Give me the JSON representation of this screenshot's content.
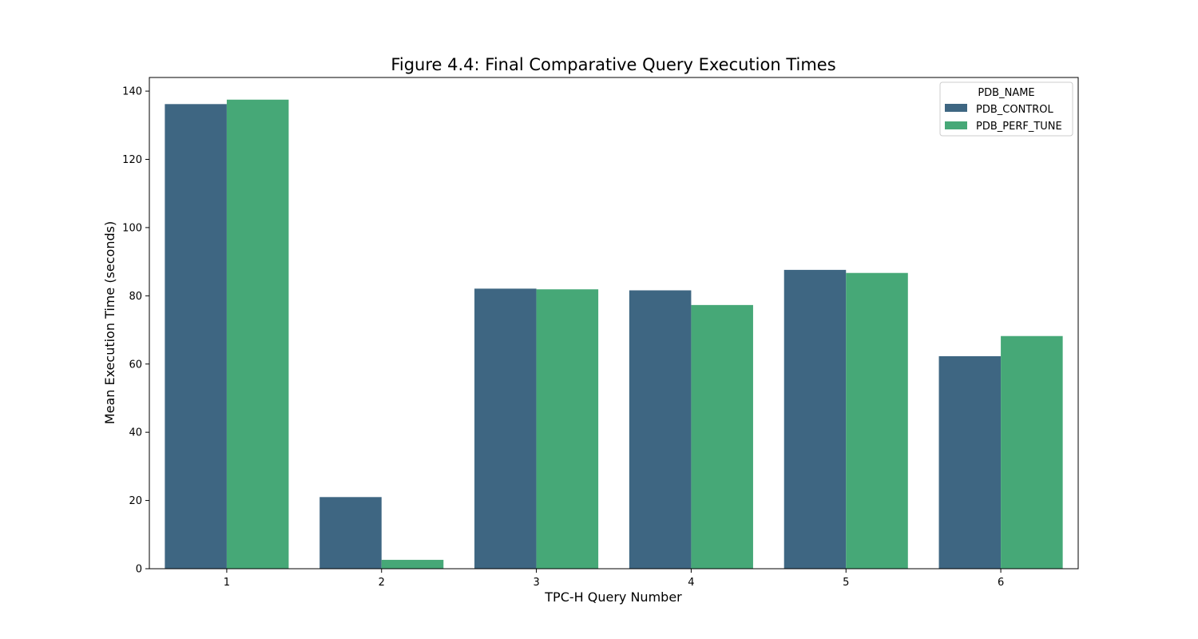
{
  "chart_data": {
    "type": "bar",
    "title": "Figure 4.4: Final Comparative Query Execution Times",
    "xlabel": "TPC-H Query Number",
    "ylabel": "Mean Execution Time (seconds)",
    "categories": [
      "1",
      "2",
      "3",
      "4",
      "5",
      "6"
    ],
    "series": [
      {
        "name": "PDB_CONTROL",
        "color": "#3e6682",
        "values": [
          136.2,
          21.0,
          82.1,
          81.6,
          87.6,
          62.3
        ]
      },
      {
        "name": "PDB_PERF_TUNE",
        "color": "#46a877",
        "values": [
          137.5,
          2.6,
          81.9,
          77.3,
          86.7,
          68.2
        ]
      }
    ],
    "ylim": [
      0,
      144
    ],
    "yticks": [
      0,
      20,
      40,
      60,
      80,
      100,
      120,
      140
    ],
    "legend": {
      "title": "PDB_NAME",
      "position": "top-right"
    },
    "grid": false
  }
}
